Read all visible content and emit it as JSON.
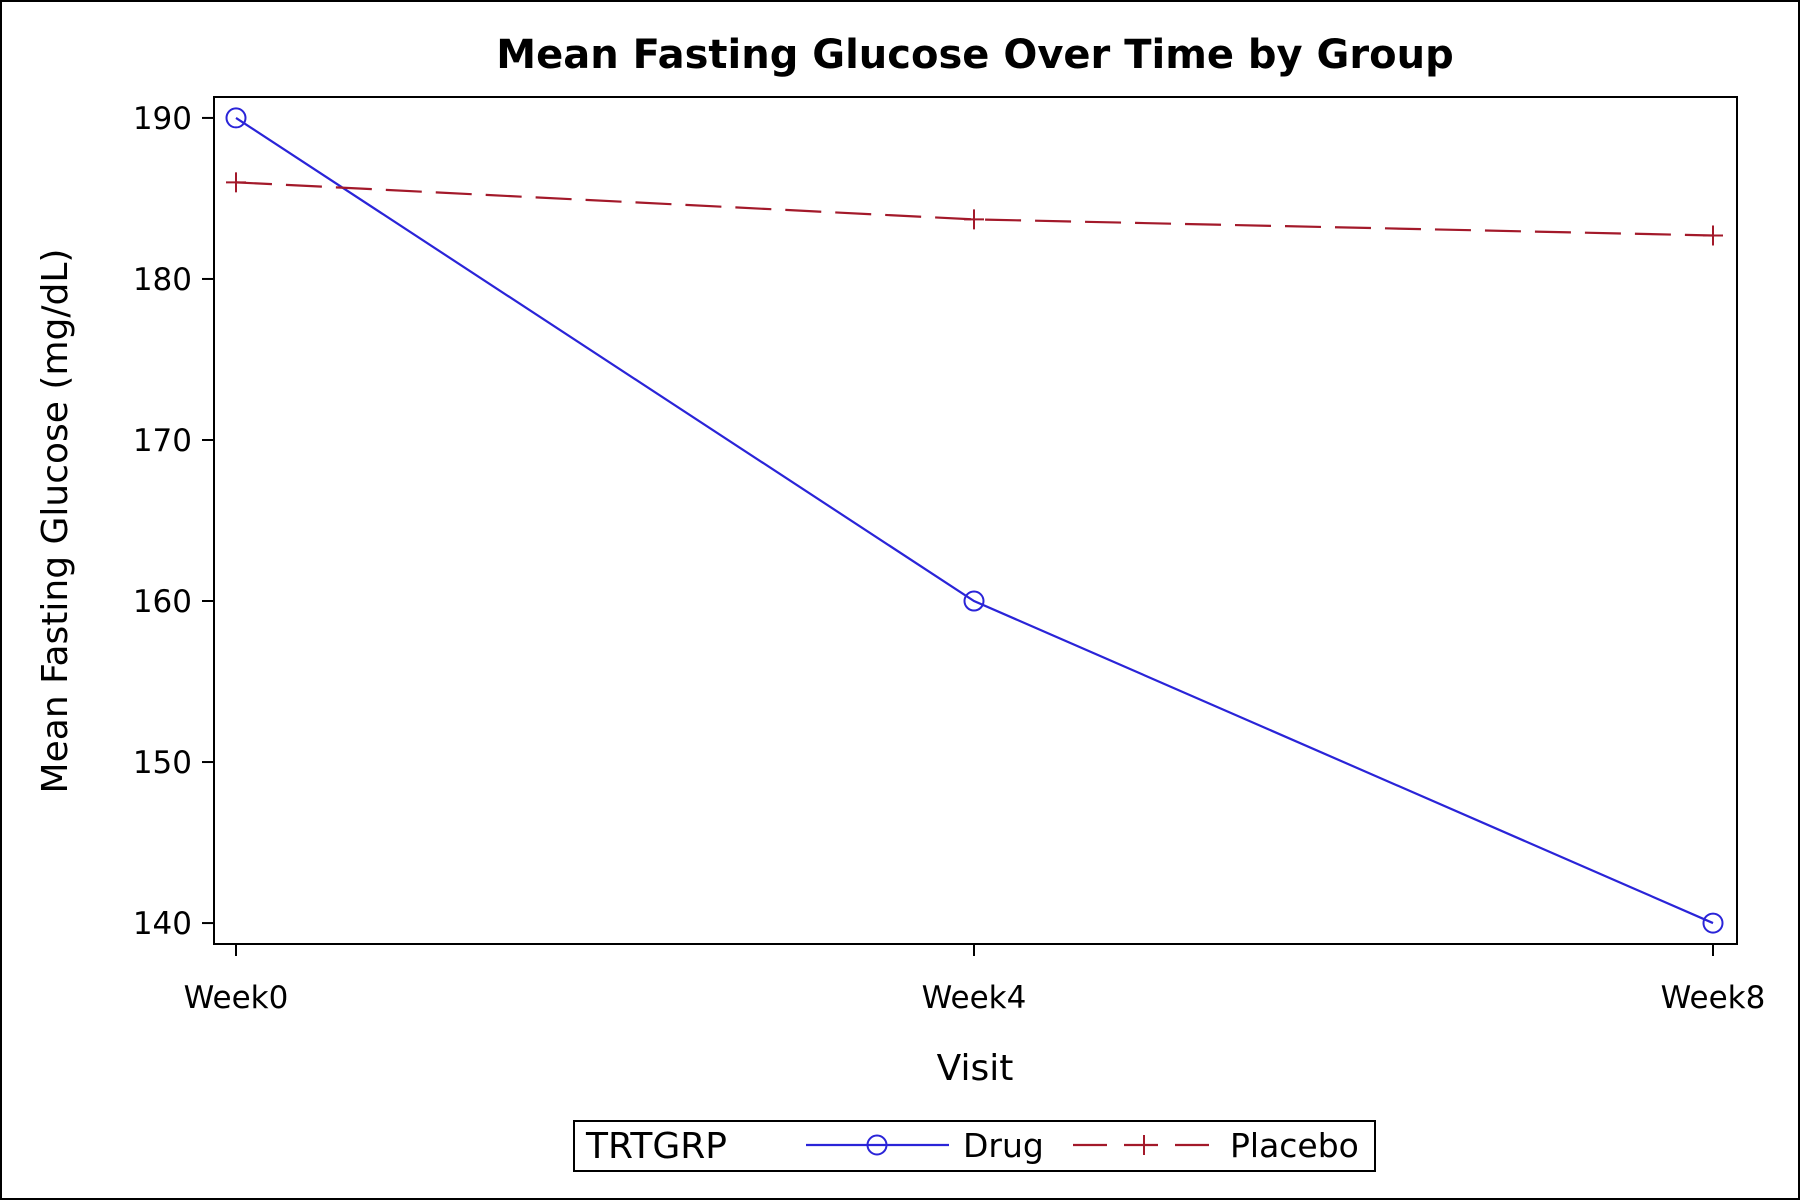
{
  "chart_data": {
    "type": "line",
    "title": "Mean Fasting Glucose Over Time by Group",
    "xlabel": "Visit",
    "ylabel": "Mean Fasting Glucose (mg/dL)",
    "categories": [
      "Week0",
      "Week4",
      "Week8"
    ],
    "ylim": [
      138.7,
      191.3
    ],
    "yticks": [
      140,
      150,
      160,
      170,
      180,
      190
    ],
    "grid": false,
    "legend": {
      "title": "TRTGRP",
      "position": "bottom-center"
    },
    "series": [
      {
        "name": "Drug",
        "values": [
          190,
          160,
          140
        ],
        "color": "#2a24d8",
        "marker": "circle",
        "line_style": "solid"
      },
      {
        "name": "Placebo",
        "values": [
          186,
          183.7,
          182.7
        ],
        "color": "#a3192a",
        "marker": "plus",
        "line_style": "dashed"
      }
    ]
  }
}
